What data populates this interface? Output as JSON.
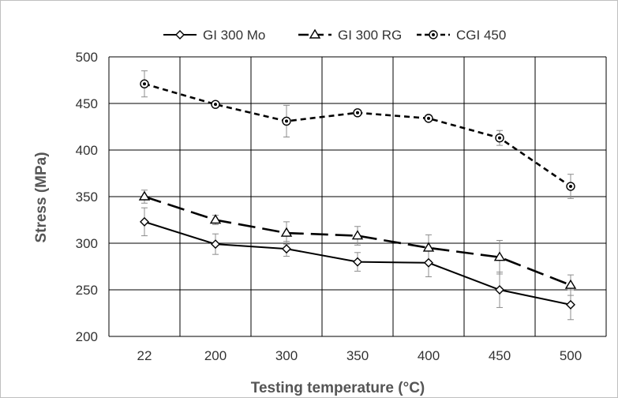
{
  "chart_data": {
    "type": "line",
    "categories": [
      "22",
      "200",
      "300",
      "350",
      "400",
      "450",
      "500"
    ],
    "xlabel": "Testing temperature (°C)",
    "ylabel": "Stress (MPa)",
    "ylim": [
      200,
      500
    ],
    "yticks": [
      200,
      250,
      300,
      350,
      400,
      450,
      500
    ],
    "grid": true,
    "legend_position": "top",
    "series": [
      {
        "name": "GI 300 Mo",
        "values": [
          323,
          299,
          294,
          280,
          279,
          250,
          234
        ],
        "errors": [
          15,
          11,
          8,
          10,
          15,
          19,
          16
        ],
        "marker": "diamond",
        "line_style": "solid",
        "color": "#000000"
      },
      {
        "name": "GI 300 RG",
        "values": [
          350,
          325,
          311,
          308,
          295,
          285,
          255
        ],
        "errors": [
          7,
          5,
          12,
          10,
          14,
          18,
          11
        ],
        "marker": "triangle",
        "line_style": "long-dash",
        "color": "#000000"
      },
      {
        "name": "CGI 450",
        "values": [
          471,
          449,
          431,
          440,
          434,
          413,
          361
        ],
        "errors": [
          14,
          3,
          17,
          3,
          3,
          8,
          13
        ],
        "marker": "circle",
        "line_style": "short-dash",
        "color": "#000000"
      }
    ]
  }
}
